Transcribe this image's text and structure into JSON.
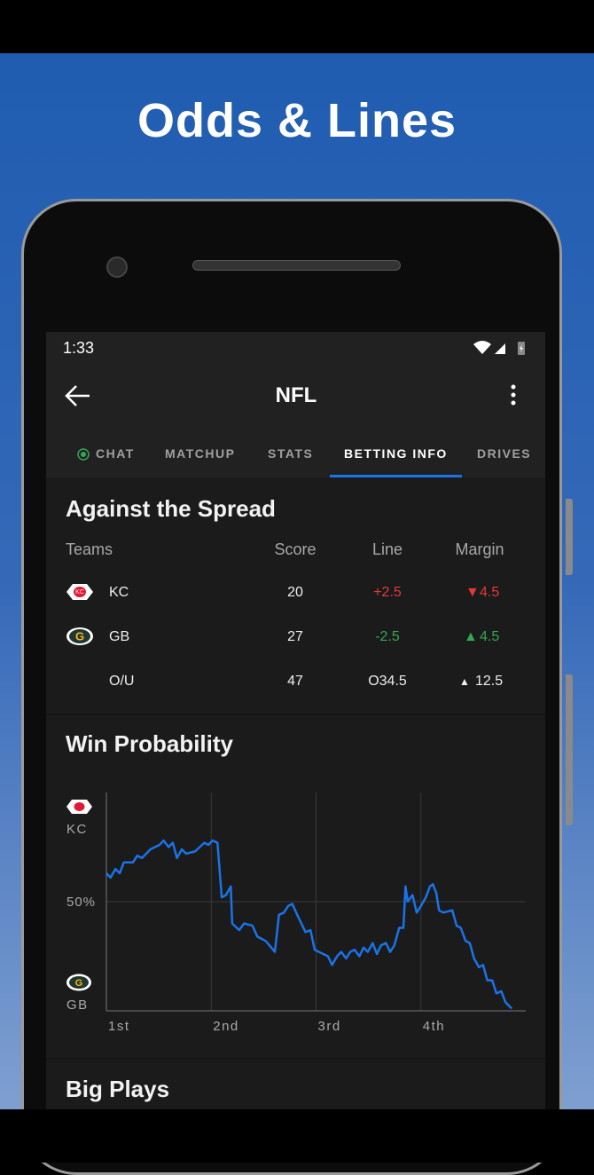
{
  "banner": {
    "title": "Odds & Lines"
  },
  "status": {
    "time": "1:33"
  },
  "header": {
    "title": "NFL"
  },
  "tabs": {
    "items": [
      "CHAT",
      "MATCHUP",
      "STATS",
      "BETTING INFO",
      "DRIVES"
    ],
    "active": 3
  },
  "spread": {
    "title": "Against the Spread",
    "columns": [
      "Teams",
      "Score",
      "Line",
      "Margin"
    ],
    "rows": [
      {
        "team": "KC",
        "score": 20,
        "line": "+2.5",
        "margin": 4.5
      },
      {
        "team": "GB",
        "score": 27,
        "line": "-2.5",
        "margin": 4.5
      },
      {
        "team": "O/U",
        "score": 47,
        "line": "O34.5",
        "margin": 12.5
      }
    ]
  },
  "chart_data": {
    "type": "line",
    "title": "Win Probability",
    "y_top_label": "KC",
    "y_bottom_label": "GB",
    "color": "#1a73e8",
    "xlim": [
      0,
      60
    ],
    "ylim": [
      0,
      100
    ],
    "xticks": [
      {
        "value": 0,
        "label": "1st"
      },
      {
        "value": 15,
        "label": "2nd"
      },
      {
        "value": 30,
        "label": "3rd"
      },
      {
        "value": 45,
        "label": "4th"
      }
    ],
    "yticks": [
      {
        "value": 50,
        "label": "50%"
      }
    ],
    "grid": true,
    "x": [
      0.0,
      0.6,
      1.3,
      1.9,
      2.5,
      3.8,
      4.4,
      5.1,
      6.3,
      7.6,
      8.2,
      8.9,
      9.5,
      10.1,
      10.8,
      11.4,
      12.7,
      14.0,
      14.6,
      15.2,
      15.9,
      16.5,
      17.1,
      17.8,
      18.0,
      19.0,
      19.7,
      20.9,
      21.6,
      22.8,
      24.1,
      24.7,
      25.4,
      26.0,
      26.6,
      27.3,
      27.9,
      28.5,
      29.2,
      29.8,
      30.4,
      31.7,
      32.3,
      33.0,
      33.6,
      34.3,
      34.9,
      35.5,
      36.2,
      36.8,
      37.4,
      38.1,
      38.7,
      39.3,
      40.0,
      40.6,
      41.2,
      41.9,
      42.5,
      42.8,
      43.1,
      43.8,
      44.4,
      45.0,
      45.7,
      46.3,
      46.7,
      47.2,
      47.6,
      48.2,
      49.5,
      50.1,
      50.7,
      51.4,
      52.0,
      52.6,
      53.3,
      53.9,
      54.5,
      55.2,
      55.8,
      56.5,
      57.1,
      58.0
    ],
    "values": [
      63,
      61,
      65,
      63,
      68,
      68,
      71,
      70,
      74,
      76,
      78,
      75,
      77,
      70,
      74,
      72,
      73,
      77,
      76,
      78,
      77,
      52,
      53,
      57,
      40,
      37,
      40,
      39,
      34,
      32,
      27,
      44,
      45,
      48,
      49,
      44,
      40,
      36,
      37,
      28,
      27,
      25,
      21,
      25,
      27,
      24,
      27,
      28,
      25,
      29,
      27,
      31,
      26,
      30,
      31,
      27,
      30,
      38,
      38,
      57,
      50,
      53,
      45,
      48,
      52,
      57,
      58,
      54,
      46,
      45,
      46,
      39,
      38,
      32,
      31,
      24,
      20,
      21,
      14,
      14,
      8,
      9,
      4,
      1
    ]
  },
  "big_plays": {
    "title": "Big Plays"
  }
}
